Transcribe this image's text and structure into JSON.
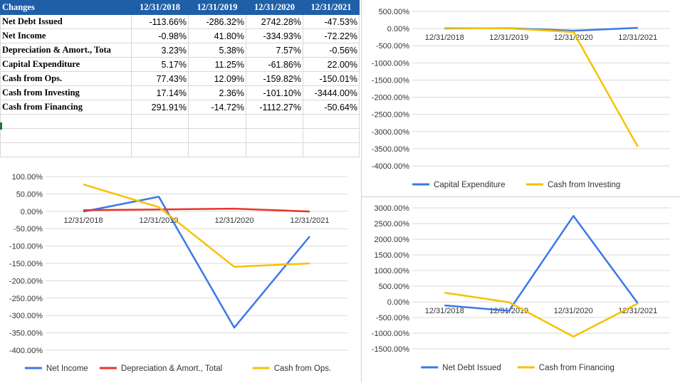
{
  "table": {
    "header": [
      "Changes",
      "12/31/2018",
      "12/31/2019",
      "12/31/2020",
      "12/31/2021"
    ],
    "rows": [
      [
        "Net Debt Issued",
        "-113.66%",
        "-286.32%",
        "2742.28%",
        "-47.53%"
      ],
      [
        "Net Income",
        "-0.98%",
        "41.80%",
        "-334.93%",
        "-72.22%"
      ],
      [
        "Depreciation & Amort., Tota",
        "3.23%",
        "5.38%",
        "7.57%",
        "-0.56%"
      ],
      [
        "Capital Expenditure",
        "5.17%",
        "11.25%",
        "-61.86%",
        "22.00%"
      ],
      [
        "Cash from Ops.",
        "77.43%",
        "12.09%",
        "-159.82%",
        "-150.01%"
      ],
      [
        "Cash from Investing",
        "17.14%",
        "2.36%",
        "-101.10%",
        "-3444.00%"
      ],
      [
        "Cash from Financing",
        "291.91%",
        "-14.72%",
        "-1112.27%",
        "-50.64%"
      ]
    ]
  },
  "chart_data": [
    {
      "type": "line",
      "categories": [
        "12/31/2018",
        "12/31/2019",
        "12/31/2020",
        "12/31/2021"
      ],
      "series": [
        {
          "name": "Capital Expenditure",
          "color": "#3b78e7",
          "values": [
            5.17,
            11.25,
            -61.86,
            22.0
          ]
        },
        {
          "name": "Cash from Investing",
          "color": "#f7c100",
          "values": [
            17.14,
            2.36,
            -101.1,
            -3444.0
          ]
        }
      ],
      "ylim": [
        -4000,
        500
      ],
      "yticks": [
        500,
        0,
        -500,
        -1000,
        -1500,
        -2000,
        -2500,
        -3000,
        -3500,
        -4000
      ],
      "ytick_labels": [
        "500.00%",
        "0.00%",
        "-500.00%",
        "-1000.00%",
        "-1500.00%",
        "-2000.00%",
        "-2500.00%",
        "-3000.00%",
        "-3500.00%",
        "-4000.00%"
      ],
      "grid": true,
      "legend": "bottom"
    },
    {
      "type": "line",
      "categories": [
        "12/31/2018",
        "12/31/2019",
        "12/31/2020",
        "12/31/2021"
      ],
      "series": [
        {
          "name": "Net Income",
          "color": "#3b78e7",
          "values": [
            -0.98,
            41.8,
            -334.93,
            -72.22
          ]
        },
        {
          "name": "Depreciation & Amort., Total",
          "color": "#e8342a",
          "values": [
            3.23,
            5.38,
            7.57,
            -0.56
          ]
        },
        {
          "name": "Cash from Ops.",
          "color": "#f7c100",
          "values": [
            77.43,
            12.09,
            -159.82,
            -150.01
          ]
        }
      ],
      "ylim": [
        -400,
        100
      ],
      "yticks": [
        100,
        50,
        0,
        -50,
        -100,
        -150,
        -200,
        -250,
        -300,
        -350,
        -400
      ],
      "ytick_labels": [
        "100.00%",
        "50.00%",
        "0.00%",
        "-50.00%",
        "-100.00%",
        "-150.00%",
        "-200.00%",
        "-250.00%",
        "-300.00%",
        "-350.00%",
        "-400.00%"
      ],
      "grid": true,
      "legend": "bottom"
    },
    {
      "type": "line",
      "categories": [
        "12/31/2018",
        "12/31/2019",
        "12/31/2020",
        "12/31/2021"
      ],
      "series": [
        {
          "name": "Net Debt Issued",
          "color": "#3b78e7",
          "values": [
            -113.66,
            -286.32,
            2742.28,
            -47.53
          ]
        },
        {
          "name": "Cash from Financing",
          "color": "#f7c100",
          "values": [
            291.91,
            -14.72,
            -1112.27,
            -50.64
          ]
        }
      ],
      "ylim": [
        -1500,
        3000
      ],
      "yticks": [
        3000,
        2500,
        2000,
        1500,
        1000,
        500,
        0,
        -500,
        -1000,
        -1500
      ],
      "ytick_labels": [
        "3000.00%",
        "2500.00%",
        "2000.00%",
        "1500.00%",
        "1000.00%",
        "500.00%",
        "0.00%",
        "-500.00%",
        "-1000.00%",
        "-1500.00%"
      ],
      "grid": true,
      "legend": "bottom"
    }
  ]
}
